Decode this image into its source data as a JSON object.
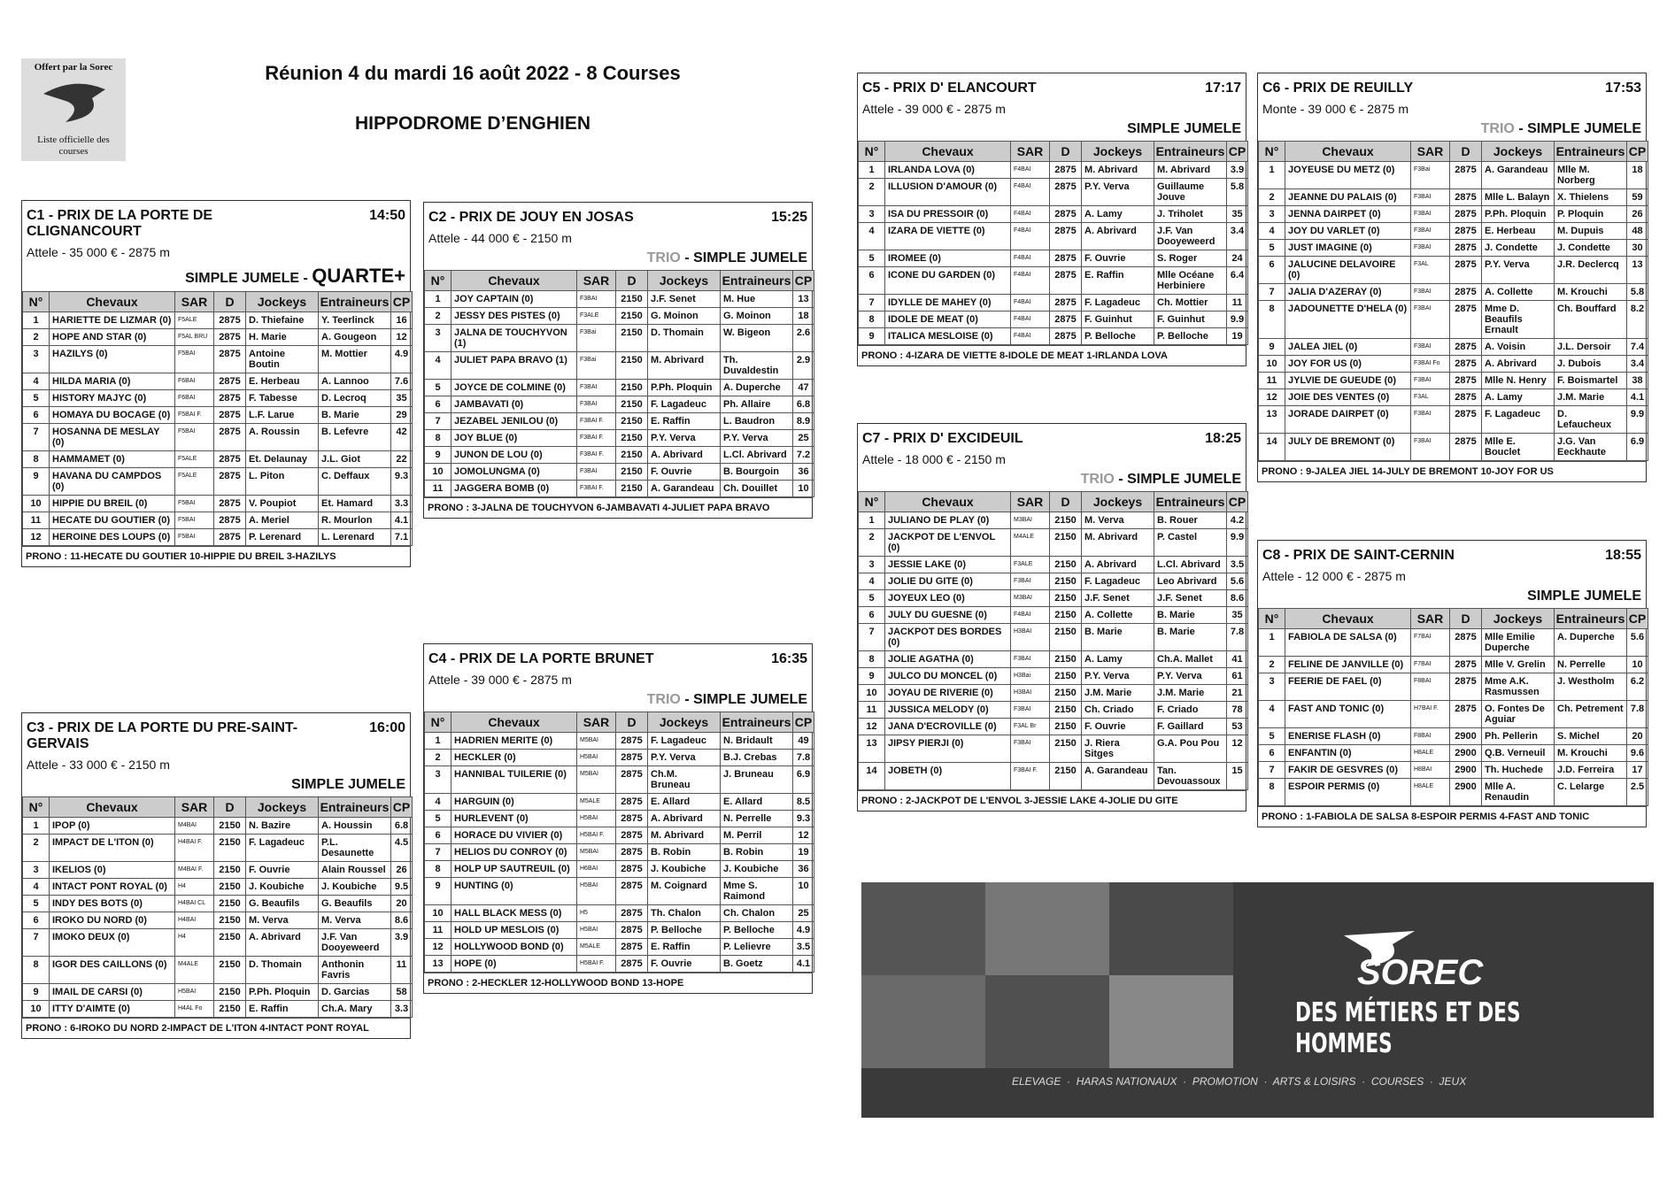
{
  "header": {
    "logo_top": "Offert par la Sorec",
    "logo_bottom": "Liste officielle des courses",
    "title": "Réunion 4 du mardi 16 août 2022 - 8 Courses",
    "venue": "HIPPODROME D’ENGHIEN"
  },
  "table_header": [
    "N°",
    "Chevaux",
    "SAR",
    "D",
    "Jockeys",
    "Entraineurs",
    "CP"
  ],
  "races": [
    {
      "title": "C1 -  PRIX DE LA PORTE DE CLIGNANCOURT",
      "time": "14:50",
      "info": "Attele - 35 000 € - 2875 m",
      "bets": [
        {
          "text": "SIMPLE JUMELE - ",
          "style": "plain"
        },
        {
          "text": "QUARTE+",
          "style": "large"
        }
      ],
      "rows": [
        [
          "1",
          "HARIETTE DE LIZMAR (0)",
          "F5ALE",
          "2875",
          "D. Thiefaine",
          "Y. Teerlinck",
          "16"
        ],
        [
          "2",
          "HOPE AND STAR (0)",
          "F5AL BRU",
          "2875",
          "H. Marie",
          "A. Gougeon",
          "12"
        ],
        [
          "3",
          "HAZILYS (0)",
          "F5BAI",
          "2875",
          "Antoine Boutin",
          "M. Mottier",
          "4.9"
        ],
        [
          "4",
          "HILDA MARIA (0)",
          "F6BAI",
          "2875",
          "E. Herbeau",
          "A. Lannoo",
          "7.6"
        ],
        [
          "5",
          "HISTORY MAJYC (0)",
          "F6BAI",
          "2875",
          "F. Tabesse",
          "D. Lecroq",
          "35"
        ],
        [
          "6",
          "HOMAYA DU BOCAGE (0)",
          "F5BAI F.",
          "2875",
          "L.F. Larue",
          "B. Marie",
          "29"
        ],
        [
          "7",
          "HOSANNA DE MESLAY (0)",
          "F5BAI",
          "2875",
          "A. Roussin",
          "B. Lefevre",
          "42"
        ],
        [
          "8",
          "HAMMAMET (0)",
          "F5ALE",
          "2875",
          "Et. Delaunay",
          "J.L. Giot",
          "22"
        ],
        [
          "9",
          "HAVANA DU CAMPDOS (0)",
          "F5ALE",
          "2875",
          "L. Piton",
          "C. Deffaux",
          "9.3"
        ],
        [
          "10",
          "HIPPIE DU BREIL (0)",
          "F5BAI",
          "2875",
          "V. Poupiot",
          "Et. Hamard",
          "3.3"
        ],
        [
          "11",
          "HECATE DU GOUTIER (0)",
          "F5BAI",
          "2875",
          "A. Meriel",
          "R. Mourlon",
          "4.1"
        ],
        [
          "12",
          "HEROINE DES LOUPS (0)",
          "F5BAI",
          "2875",
          "P. Lerenard",
          "L. Lerenard",
          "7.1"
        ]
      ],
      "prono": "PRONO : 11-HECATE DU GOUTIER 10-HIPPIE DU BREIL 3-HAZILYS"
    },
    {
      "title": "C2 -  PRIX DE JOUY EN JOSAS",
      "time": "15:25",
      "info": "Attele - 44 000 € - 2150 m",
      "bets": [
        {
          "text": "TRIO",
          "style": "gray"
        },
        {
          "text": " - SIMPLE JUMELE",
          "style": "plain"
        }
      ],
      "rows": [
        [
          "1",
          "JOY CAPTAIN (0)",
          "F3BAI",
          "2150",
          "J.F. Senet",
          "M. Hue",
          "13"
        ],
        [
          "2",
          "JESSY DES PISTES (0)",
          "F3ALE",
          "2150",
          "G. Moinon",
          "G. Moinon",
          "18"
        ],
        [
          "3",
          "JALNA DE TOUCHYVON (1)",
          "F3Bai",
          "2150",
          "D. Thomain",
          "W. Bigeon",
          "2.6"
        ],
        [
          "4",
          "JULIET PAPA BRAVO (1)",
          "F3Bai",
          "2150",
          "M. Abrivard",
          "Th. Duvaldestin",
          "2.9"
        ],
        [
          "5",
          "JOYCE DE COLMINE (0)",
          "F3BAI",
          "2150",
          "P.Ph. Ploquin",
          "A. Duperche",
          "47"
        ],
        [
          "6",
          "JAMBAVATI (0)",
          "F3BAI",
          "2150",
          "F. Lagadeuc",
          "Ph. Allaire",
          "6.8"
        ],
        [
          "7",
          "JEZABEL JENILOU (0)",
          "F3BAI F.",
          "2150",
          "E. Raffin",
          "L. Baudron",
          "8.9"
        ],
        [
          "8",
          "JOY BLUE (0)",
          "F3BAI F.",
          "2150",
          "P.Y. Verva",
          "P.Y. Verva",
          "25"
        ],
        [
          "9",
          "JUNON DE LOU (0)",
          "F3BAI F.",
          "2150",
          "A. Abrivard",
          "L.Cl. Abrivard",
          "7.2"
        ],
        [
          "10",
          "JOMOLUNGMA (0)",
          "F3BAI",
          "2150",
          "F. Ouvrie",
          "B. Bourgoin",
          "36"
        ],
        [
          "11",
          "JAGGERA BOMB (0)",
          "F3BAI F.",
          "2150",
          "A. Garandeau",
          "Ch. Douillet",
          "10"
        ]
      ],
      "prono": "PRONO : 3-JALNA DE TOUCHYVON 6-JAMBAVATI 4-JULIET PAPA BRAVO"
    },
    {
      "title": "C3 -  PRIX DE LA PORTE DU PRE-SAINT-GERVAIS",
      "time": "16:00",
      "info": "Attele - 33 000 € - 2150 m",
      "bets": [
        {
          "text": "SIMPLE JUMELE",
          "style": "plain"
        }
      ],
      "rows": [
        [
          "1",
          "IPOP (0)",
          "M4BAI",
          "2150",
          "N. Bazire",
          "A. Houssin",
          "6.8"
        ],
        [
          "2",
          "IMPACT DE L'ITON (0)",
          "H4BAI F.",
          "2150",
          "F. Lagadeuc",
          "P.L. Desaunette",
          "4.5"
        ],
        [
          "3",
          "IKELIOS (0)",
          "M4BAI F.",
          "2150",
          "F. Ouvrie",
          "Alain Roussel",
          "26"
        ],
        [
          "4",
          "INTACT PONT ROYAL (0)",
          "H4",
          "2150",
          "J. Koubiche",
          "J. Koubiche",
          "9.5"
        ],
        [
          "5",
          "INDY DES BOTS (0)",
          "H4BAI CL",
          "2150",
          "G. Beaufils",
          "G. Beaufils",
          "20"
        ],
        [
          "6",
          "IROKO DU NORD (0)",
          "H4BAI",
          "2150",
          "M. Verva",
          "M. Verva",
          "8.6"
        ],
        [
          "7",
          "IMOKO DEUX (0)",
          "H4",
          "2150",
          "A. Abrivard",
          "J.F. Van Dooyeweerd",
          "3.9"
        ],
        [
          "8",
          "IGOR DES CAILLONS (0)",
          "M4ALE",
          "2150",
          "D. Thomain",
          "Anthonin Favris",
          "11"
        ],
        [
          "9",
          "IMAIL DE CARSI (0)",
          "H5BAI",
          "2150",
          "P.Ph. Ploquin",
          "D. Garcias",
          "58"
        ],
        [
          "10",
          "ITTY D'AIMTE (0)",
          "H4AL Fo",
          "2150",
          "E. Raffin",
          "Ch.A. Mary",
          "3.3"
        ]
      ],
      "prono": "PRONO : 6-IROKO DU NORD 2-IMPACT DE L'ITON 4-INTACT PONT ROYAL"
    },
    {
      "title": "C4 -  PRIX DE LA PORTE BRUNET",
      "time": "16:35",
      "info": "Attele - 39 000 € - 2875 m",
      "bets": [
        {
          "text": "TRIO",
          "style": "gray"
        },
        {
          "text": " - SIMPLE JUMELE",
          "style": "plain"
        }
      ],
      "rows": [
        [
          "1",
          "HADRIEN MERITE (0)",
          "M5BAI",
          "2875",
          "F. Lagadeuc",
          "N. Bridault",
          "49"
        ],
        [
          "2",
          "HECKLER (0)",
          "H5BAI",
          "2875",
          "P.Y. Verva",
          "B.J. Crebas",
          "7.8"
        ],
        [
          "3",
          "HANNIBAL TUILERIE (0)",
          "M5BAI",
          "2875",
          "Ch.M. Bruneau",
          "J. Bruneau",
          "6.9"
        ],
        [
          "4",
          "HARGUIN (0)",
          "M5ALE",
          "2875",
          "E. Allard",
          "E. Allard",
          "8.5"
        ],
        [
          "5",
          "HURLEVENT (0)",
          "H5BAI",
          "2875",
          "A. Abrivard",
          "N. Perrelle",
          "9.3"
        ],
        [
          "6",
          "HORACE DU VIVIER (0)",
          "H5BAI F.",
          "2875",
          "M. Abrivard",
          "M. Perril",
          "12"
        ],
        [
          "7",
          "HELIOS DU CONROY (0)",
          "M5BAI",
          "2875",
          "B. Robin",
          "B. Robin",
          "19"
        ],
        [
          "8",
          "HOLP UP SAUTREUIL (0)",
          "H6BAI",
          "2875",
          "J. Koubiche",
          "J. Koubiche",
          "36"
        ],
        [
          "9",
          "HUNTING (0)",
          "H5BAI",
          "2875",
          "M. Coignard",
          "Mme S. Raimond",
          "10"
        ],
        [
          "10",
          "HALL BLACK MESS (0)",
          "H5",
          "2875",
          "Th. Chalon",
          "Ch. Chalon",
          "25"
        ],
        [
          "11",
          "HOLD UP MESLOIS (0)",
          "H5BAI",
          "2875",
          "P. Belloche",
          "P. Belloche",
          "4.9"
        ],
        [
          "12",
          "HOLLYWOOD BOND (0)",
          "M5ALE",
          "2875",
          "E. Raffin",
          "P. Lelievre",
          "3.5"
        ],
        [
          "13",
          "HOPE (0)",
          "H5BAI F.",
          "2875",
          "F. Ouvrie",
          "B. Goetz",
          "4.1"
        ]
      ],
      "prono": "PRONO : 2-HECKLER 12-HOLLYWOOD BOND 13-HOPE"
    },
    {
      "title": "C5 -  PRIX D' ELANCOURT",
      "time": "17:17",
      "info": "Attele - 39 000 € - 2875 m",
      "bets": [
        {
          "text": "SIMPLE JUMELE",
          "style": "plain"
        }
      ],
      "rows": [
        [
          "1",
          "IRLANDA LOVA (0)",
          "F4BAI",
          "2875",
          "M. Abrivard",
          "M. Abrivard",
          "3.9"
        ],
        [
          "2",
          "ILLUSION D'AMOUR (0)",
          "F4BAI",
          "2875",
          "P.Y. Verva",
          "Guillaume Jouve",
          "5.8"
        ],
        [
          "3",
          "ISA DU PRESSOIR (0)",
          "F4BAI",
          "2875",
          "A. Lamy",
          "J. Triholet",
          "35"
        ],
        [
          "4",
          "IZARA DE VIETTE (0)",
          "F4BAI",
          "2875",
          "A. Abrivard",
          "J.F. Van Dooyeweerd",
          "3.4"
        ],
        [
          "5",
          "IROMEE (0)",
          "F4BAI",
          "2875",
          "F. Ouvrie",
          "S. Roger",
          "24"
        ],
        [
          "6",
          "ICONE DU GARDEN (0)",
          "F4BAI",
          "2875",
          "E. Raffin",
          "Mlle Océane Herbiniere",
          "6.4"
        ],
        [
          "7",
          "IDYLLE DE MAHEY (0)",
          "F4BAI",
          "2875",
          "F. Lagadeuc",
          "Ch. Mottier",
          "11"
        ],
        [
          "8",
          "IDOLE DE MEAT (0)",
          "F4BAI",
          "2875",
          "F. Guinhut",
          "F. Guinhut",
          "9.9"
        ],
        [
          "9",
          "ITALICA MESLOISE (0)",
          "F4BAI",
          "2875",
          "P. Belloche",
          "P. Belloche",
          "19"
        ]
      ],
      "prono": "PRONO : 4-IZARA DE VIETTE 8-IDOLE DE MEAT 1-IRLANDA LOVA"
    },
    {
      "title": "C6 -  PRIX DE REUILLY",
      "time": "17:53",
      "info": "Monte - 39 000 € - 2875 m",
      "bets": [
        {
          "text": "TRIO",
          "style": "gray"
        },
        {
          "text": " - SIMPLE JUMELE",
          "style": "plain"
        }
      ],
      "rows": [
        [
          "1",
          "JOYEUSE DU METZ (0)",
          "F3Bai",
          "2875",
          "A. Garandeau",
          "Mlle M. Norberg",
          "18"
        ],
        [
          "2",
          "JEANNE DU PALAIS (0)",
          "F3BAI",
          "2875",
          "Mlle L. Balayn",
          "X. Thielens",
          "59"
        ],
        [
          "3",
          "JENNA DAIRPET (0)",
          "F3BAI",
          "2875",
          "P.Ph. Ploquin",
          "P. Ploquin",
          "26"
        ],
        [
          "4",
          "JOY DU VARLET (0)",
          "F3BAI",
          "2875",
          "E. Herbeau",
          "M. Dupuis",
          "48"
        ],
        [
          "5",
          "JUST IMAGINE (0)",
          "F3BAI",
          "2875",
          "J. Condette",
          "J. Condette",
          "30"
        ],
        [
          "6",
          "JALUCINE DELAVOIRE (0)",
          "F3AL",
          "2875",
          "P.Y. Verva",
          "J.R. Declercq",
          "13"
        ],
        [
          "7",
          "JALIA D'AZERAY (0)",
          "F3BAI",
          "2875",
          "A. Collette",
          "M. Krouchi",
          "5.8"
        ],
        [
          "8",
          "JADOUNETTE D'HELA (0)",
          "F3BAI",
          "2875",
          "Mme D. Beaufils Ernault",
          "Ch. Bouffard",
          "8.2"
        ],
        [
          "9",
          "JALEA JIEL (0)",
          "F3BAI",
          "2875",
          "A. Voisin",
          "J.L. Dersoir",
          "7.4"
        ],
        [
          "10",
          "JOY FOR US (0)",
          "F3BAI Fo",
          "2875",
          "A. Abrivard",
          "J. Dubois",
          "3.4"
        ],
        [
          "11",
          "JYLVIE DE GUEUDE (0)",
          "F3BAI",
          "2875",
          "Mlle N. Henry",
          "F. Boismartel",
          "38"
        ],
        [
          "12",
          "JOIE DES VENTES (0)",
          "F3AL",
          "2875",
          "A. Lamy",
          "J.M. Marie",
          "4.1"
        ],
        [
          "13",
          "JORADE DAIRPET (0)",
          "F3BAI",
          "2875",
          "F. Lagadeuc",
          "D. Lefaucheux",
          "9.9"
        ],
        [
          "14",
          "JULY DE BREMONT (0)",
          "F3BAI",
          "2875",
          "Mlle E. Bouclet",
          "J.G. Van Eeckhaute",
          "6.9"
        ]
      ],
      "prono": "PRONO : 9-JALEA JIEL 14-JULY DE BREMONT 10-JOY FOR US"
    },
    {
      "title": "C7 -  PRIX D' EXCIDEUIL",
      "time": "18:25",
      "info": "Attele - 18 000 € - 2150 m",
      "bets": [
        {
          "text": "TRIO",
          "style": "gray"
        },
        {
          "text": " - SIMPLE JUMELE",
          "style": "plain"
        }
      ],
      "rows": [
        [
          "1",
          "JULIANO DE PLAY (0)",
          "M3BAI",
          "2150",
          "M. Verva",
          "B. Rouer",
          "4.2"
        ],
        [
          "2",
          "JACKPOT DE L'ENVOL (0)",
          "M4ALE",
          "2150",
          "M. Abrivard",
          "P. Castel",
          "9.9"
        ],
        [
          "3",
          "JESSIE LAKE (0)",
          "F3ALE",
          "2150",
          "A. Abrivard",
          "L.Cl. Abrivard",
          "3.5"
        ],
        [
          "4",
          "JOLIE DU GITE (0)",
          "F3BAI",
          "2150",
          "F. Lagadeuc",
          "Leo Abrivard",
          "5.6"
        ],
        [
          "5",
          "JOYEUX LEO (0)",
          "M3BAI",
          "2150",
          "J.F. Senet",
          "J.F. Senet",
          "8.6"
        ],
        [
          "6",
          "JULY DU GUESNE (0)",
          "F4BAI",
          "2150",
          "A. Collette",
          "B. Marie",
          "35"
        ],
        [
          "7",
          "JACKPOT DES BORDES (0)",
          "H3BAI",
          "2150",
          "B. Marie",
          "B. Marie",
          "7.8"
        ],
        [
          "8",
          "JOLIE AGATHA (0)",
          "F3BAI",
          "2150",
          "A. Lamy",
          "Ch.A. Mallet",
          "41"
        ],
        [
          "9",
          "JULCO DU MONCEL (0)",
          "H3Bai",
          "2150",
          "P.Y. Verva",
          "P.Y. Verva",
          "61"
        ],
        [
          "10",
          "JOYAU DE RIVERIE (0)",
          "H3BAI",
          "2150",
          "J.M. Marie",
          "J.M. Marie",
          "21"
        ],
        [
          "11",
          "JUSSICA MELODY (0)",
          "F3BAI",
          "2150",
          "Ch. Criado",
          "F. Criado",
          "78"
        ],
        [
          "12",
          "JANA D'ECROVILLE (0)",
          "F3AL Br",
          "2150",
          "F. Ouvrie",
          "F. Gaillard",
          "53"
        ],
        [
          "13",
          "JIPSY PIERJI (0)",
          "F3BAI",
          "2150",
          "J. Riera Sitges",
          "G.A. Pou Pou",
          "12"
        ],
        [
          "14",
          "JOBETH (0)",
          "F3BAI F.",
          "2150",
          "A. Garandeau",
          "Tan. Devouassoux",
          "15"
        ]
      ],
      "prono": "PRONO : 2-JACKPOT DE L'ENVOL 3-JESSIE LAKE 4-JOLIE DU GITE"
    },
    {
      "title": "C8 -  PRIX DE SAINT-CERNIN",
      "time": "18:55",
      "info": "Attele - 12 000 € - 2875 m",
      "bets": [
        {
          "text": "SIMPLE JUMELE",
          "style": "plain"
        }
      ],
      "rows": [
        [
          "1",
          "FABIOLA DE SALSA (0)",
          "F7BAI",
          "2875",
          "Mlle Emilie Duperche",
          "A. Duperche",
          "5.6"
        ],
        [
          "2",
          "FELINE DE JANVILLE (0)",
          "F7BAI",
          "2875",
          "Mlle V. Grelin",
          "N. Perrelle",
          "10"
        ],
        [
          "3",
          "FEERIE DE FAEL (0)",
          "F8BAI",
          "2875",
          "Mme A.K. Rasmussen",
          "J. Westholm",
          "6.2"
        ],
        [
          "4",
          "FAST AND TONIC (0)",
          "H7BAI F.",
          "2875",
          "O. Fontes De Aguiar",
          "Ch. Petrement",
          "7.8"
        ],
        [
          "5",
          "ENERISE FLASH (0)",
          "F8BAI",
          "2900",
          "Ph. Pellerin",
          "S. Michel",
          "20"
        ],
        [
          "6",
          "ENFANTIN (0)",
          "H8ALE",
          "2900",
          "Q.B. Verneuil",
          "M. Krouchi",
          "9.6"
        ],
        [
          "7",
          "FAKIR DE GESVRES (0)",
          "H8BAI",
          "2900",
          "Th. Huchede",
          "J.D. Ferreira",
          "17"
        ],
        [
          "8",
          "ESPOIR PERMIS (0)",
          "H8ALE",
          "2900",
          "Mlle A. Renaudin",
          "C. Lelarge",
          "2.5"
        ]
      ],
      "prono": "PRONO : 1-FABIOLA DE SALSA 8-ESPOIR PERMIS 4-FAST AND TONIC"
    }
  ],
  "banner": {
    "brand": "SOREC",
    "slogan": "DES MÉTIERS ET DES HOMMES",
    "strip": "ELEVAGE  ·  HARAS NATIONAUX  ·  PROMOTION  ·  ARTS & LOISIRS  ·  COURSES  ·  JEUX"
  }
}
